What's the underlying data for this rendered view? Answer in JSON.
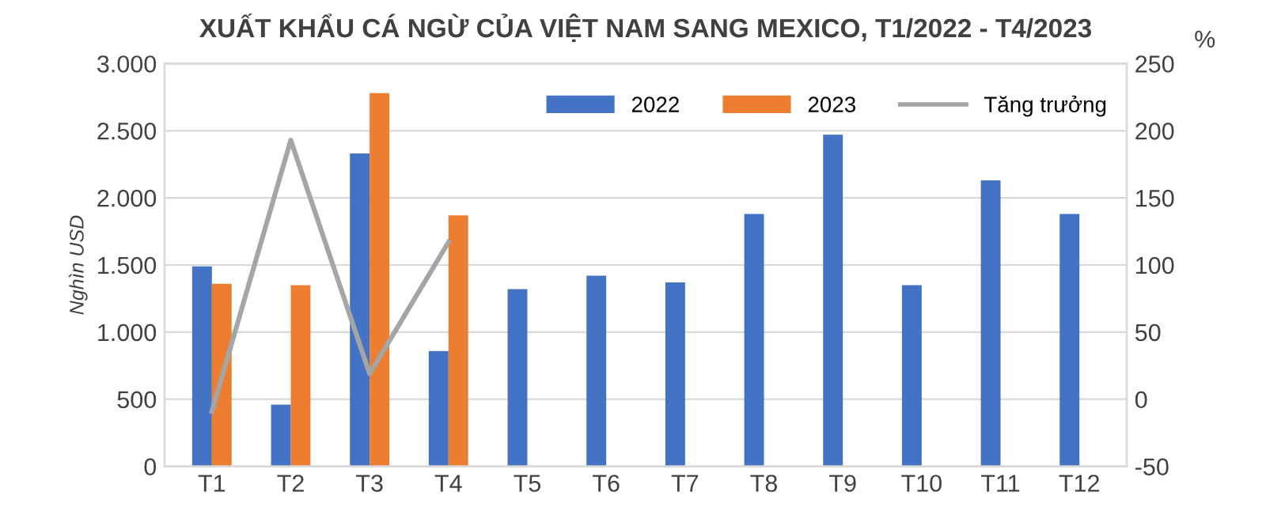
{
  "chart_data": {
    "type": "bar",
    "title": "XUẤT KHẨU CÁ NGỪ CỦA VIỆT NAM SANG MEXICO, T1/2022 - T4/2023",
    "ylabel": "Nghìn USD",
    "y2label": "%",
    "categories": [
      "T1",
      "T2",
      "T3",
      "T4",
      "T5",
      "T6",
      "T7",
      "T8",
      "T9",
      "T10",
      "T11",
      "T12"
    ],
    "series": [
      {
        "name": "2022",
        "color": "#4472c4",
        "values": [
          1490,
          460,
          2330,
          860,
          1320,
          1420,
          1370,
          1880,
          2470,
          1350,
          2130,
          1880
        ]
      },
      {
        "name": "2023",
        "color": "#ed7d31",
        "values": [
          1360,
          1350,
          2780,
          1870,
          null,
          null,
          null,
          null,
          null,
          null,
          null,
          null
        ]
      },
      {
        "name": "Tăng trưởng",
        "type": "line",
        "axis": "y2",
        "color": "#a5a5a5",
        "values": [
          -9,
          193,
          19,
          117,
          null,
          null,
          null,
          null,
          null,
          null,
          null,
          null
        ]
      }
    ],
    "ylim": [
      0,
      3000
    ],
    "yticks": [
      0,
      500,
      {
        "value": 1000,
        "label": "1.000"
      },
      {
        "value": 1500,
        "label": "1.500"
      },
      {
        "value": 2000,
        "label": "2.000"
      },
      {
        "value": 2500,
        "label": "2.500"
      },
      {
        "value": 3000,
        "label": "3.000"
      }
    ],
    "y2lim": [
      -50,
      250
    ],
    "y2ticks": [
      -50,
      0,
      50,
      100,
      150,
      200,
      250
    ],
    "grid": "y",
    "legend": "top right"
  }
}
